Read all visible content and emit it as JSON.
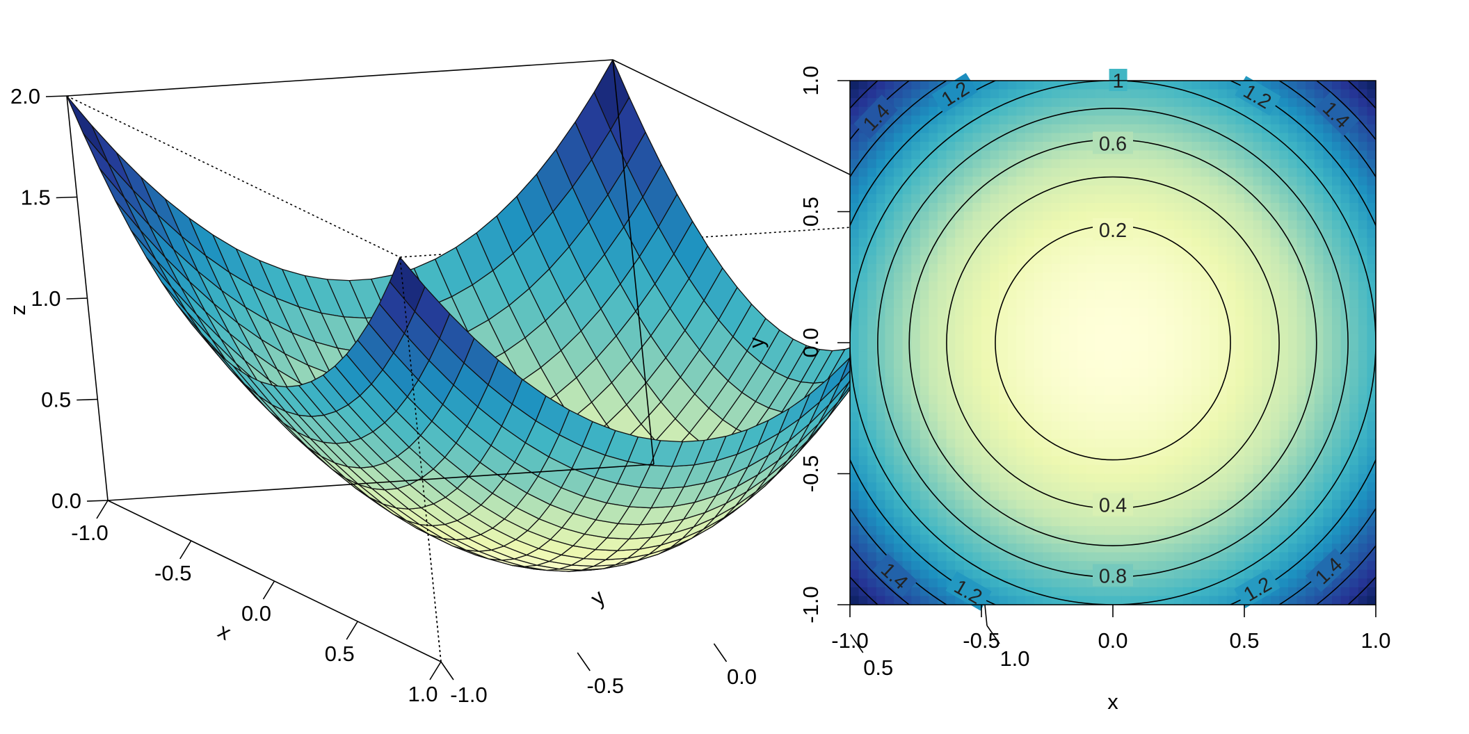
{
  "chart_data": [
    {
      "type": "surface3d",
      "function": "z = x^2 + y^2",
      "grid_size": 25,
      "x": {
        "label": "x",
        "range": [
          -1.0,
          1.0
        ],
        "ticks": [
          "-1.0",
          "-0.5",
          "0.0",
          "0.5",
          "1.0"
        ]
      },
      "y": {
        "label": "y",
        "range": [
          -1.0,
          1.0
        ],
        "ticks": [
          "-1.0",
          "-0.5",
          "0.0",
          "0.5",
          "1.0"
        ]
      },
      "z": {
        "label": "z",
        "range": [
          0.0,
          2.0
        ],
        "ticks": [
          "0.0",
          "0.5",
          "1.0",
          "1.5",
          "2.0"
        ]
      },
      "box": true,
      "palette": [
        "#FFFFD9",
        "#EDF8B1",
        "#C7E9B4",
        "#7FCDBB",
        "#41B6C4",
        "#1D91C0",
        "#225EA8",
        "#253494",
        "#081D58"
      ]
    },
    {
      "type": "heatmap",
      "function": "z = x^2 + y^2",
      "x": {
        "label": "x",
        "range": [
          -1.0,
          1.0
        ],
        "ticks": [
          "-1.0",
          "-0.5",
          "0.0",
          "0.5",
          "1.0"
        ]
      },
      "y": {
        "label": "y",
        "range": [
          -1.0,
          1.0
        ],
        "ticks": [
          "-1.0",
          "-0.5",
          "0.0",
          "0.5",
          "1.0"
        ]
      },
      "contour_levels": [
        0.2,
        0.4,
        0.6,
        0.8,
        1.0,
        1.2,
        1.4,
        1.6,
        1.8
      ],
      "contour_labels": [
        {
          "text": "0.2",
          "x": 0.0,
          "y": 0.43
        },
        {
          "text": "0.4",
          "x": 0.0,
          "y": -0.62
        },
        {
          "text": "0.6",
          "x": 0.0,
          "y": 0.76
        },
        {
          "text": "0.8",
          "x": 0.0,
          "y": -0.89
        },
        {
          "text": "1",
          "x": 0.02,
          "y": 1.0
        },
        {
          "text": "1.2",
          "x": -0.6,
          "y": 0.95
        },
        {
          "text": "1.2",
          "x": 0.55,
          "y": 0.94
        },
        {
          "text": "1.4",
          "x": -0.9,
          "y": 0.86
        },
        {
          "text": "1.4",
          "x": 0.85,
          "y": 0.87
        },
        {
          "text": "1.4",
          "x": -0.83,
          "y": -0.89
        },
        {
          "text": "1.2",
          "x": -0.55,
          "y": -0.95
        },
        {
          "text": "1.2",
          "x": 0.55,
          "y": -0.94
        },
        {
          "text": "1.4",
          "x": 0.82,
          "y": -0.87
        }
      ],
      "palette": [
        "#FFFFD9",
        "#EDF8B1",
        "#C7E9B4",
        "#7FCDBB",
        "#41B6C4",
        "#1D91C0",
        "#225EA8",
        "#253494",
        "#081D58"
      ],
      "zlim": [
        0.0,
        2.0
      ]
    }
  ]
}
